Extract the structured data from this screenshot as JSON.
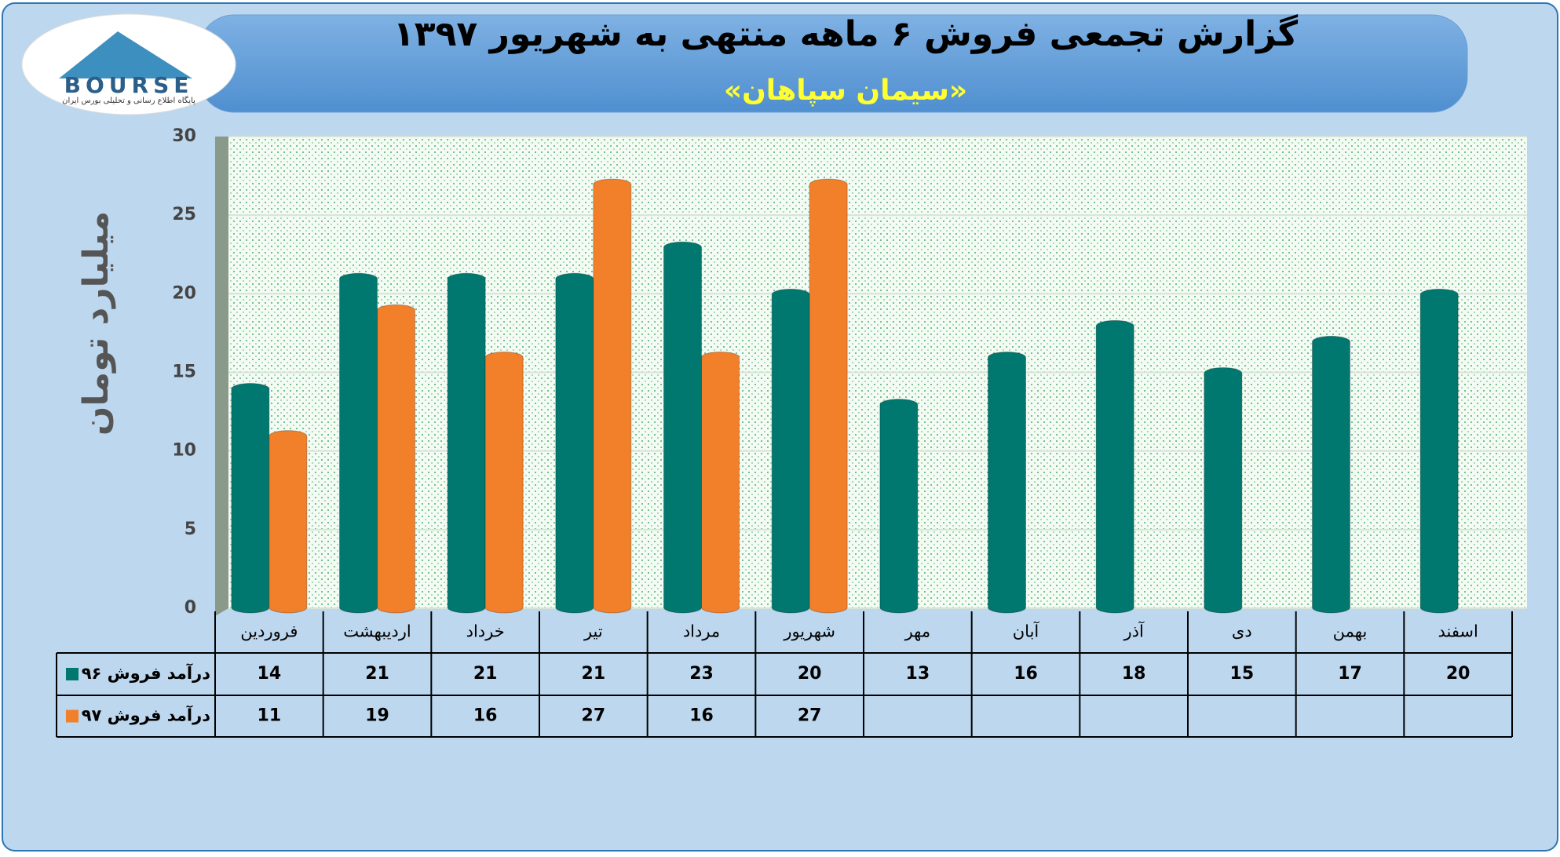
{
  "logo": {
    "text": "BOURSE",
    "tagline": "پایگاه اطلاع رسانی و تحلیلی بورس ایران"
  },
  "chart_data": {
    "type": "bar",
    "title": "گزارش تجمعی فروش ۶ ماهه منتهی به شهریور ۱۳۹۷",
    "subtitle": "«سیمان سپاهان»",
    "y_label": "میلیارد تومان",
    "categories": [
      "فروردین",
      "اردیبهشت",
      "خرداد",
      "تیر",
      "مرداد",
      "شهریور",
      "مهر",
      "آبان",
      "آذر",
      "دی",
      "بهمن",
      "اسفند"
    ],
    "series": [
      {
        "name": "درآمد فروش ۹۶",
        "color": "#00786f",
        "values": [
          14,
          21,
          21,
          21,
          23,
          20,
          13,
          16,
          18,
          15,
          17,
          20
        ]
      },
      {
        "name": "درآمد فروش ۹۷",
        "color": "#f27f2a",
        "values": [
          11,
          19,
          16,
          27,
          16,
          27,
          null,
          null,
          null,
          null,
          null,
          null
        ]
      }
    ],
    "ylim": [
      0,
      30
    ],
    "yticks": [
      0,
      5,
      10,
      15,
      20,
      25,
      30
    ],
    "grid": true
  }
}
